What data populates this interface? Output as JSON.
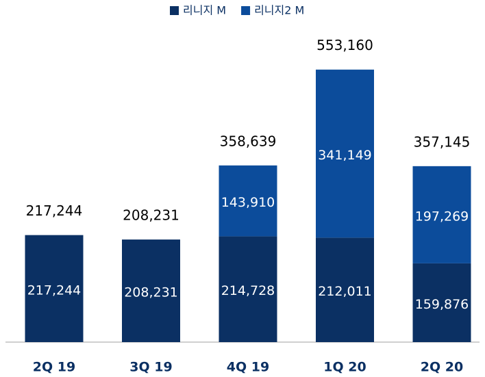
{
  "chart_data": {
    "type": "stacked_bar",
    "categories": [
      "2Q 19",
      "3Q 19",
      "4Q 19",
      "1Q 20",
      "2Q 20"
    ],
    "series": [
      {
        "name": "리니지 M",
        "color": "#0b3063",
        "values": [
          217244,
          208231,
          214728,
          212011,
          159876
        ],
        "value_labels": [
          "217,244",
          "208,231",
          "214,728",
          "212,011",
          "159,876"
        ]
      },
      {
        "name": "리니지2 M",
        "color": "#0c4c9b",
        "values": [
          null,
          null,
          143910,
          341149,
          197269
        ],
        "value_labels": [
          null,
          null,
          "143,910",
          "341,149",
          "197,269"
        ]
      }
    ],
    "totals": {
      "values": [
        217244,
        208231,
        358639,
        553160,
        357145
      ],
      "value_labels": [
        "217,244",
        "208,231",
        "358,639",
        "553,160",
        "357,145"
      ]
    },
    "ylim": [
      0,
      600000
    ],
    "legend": "top"
  }
}
